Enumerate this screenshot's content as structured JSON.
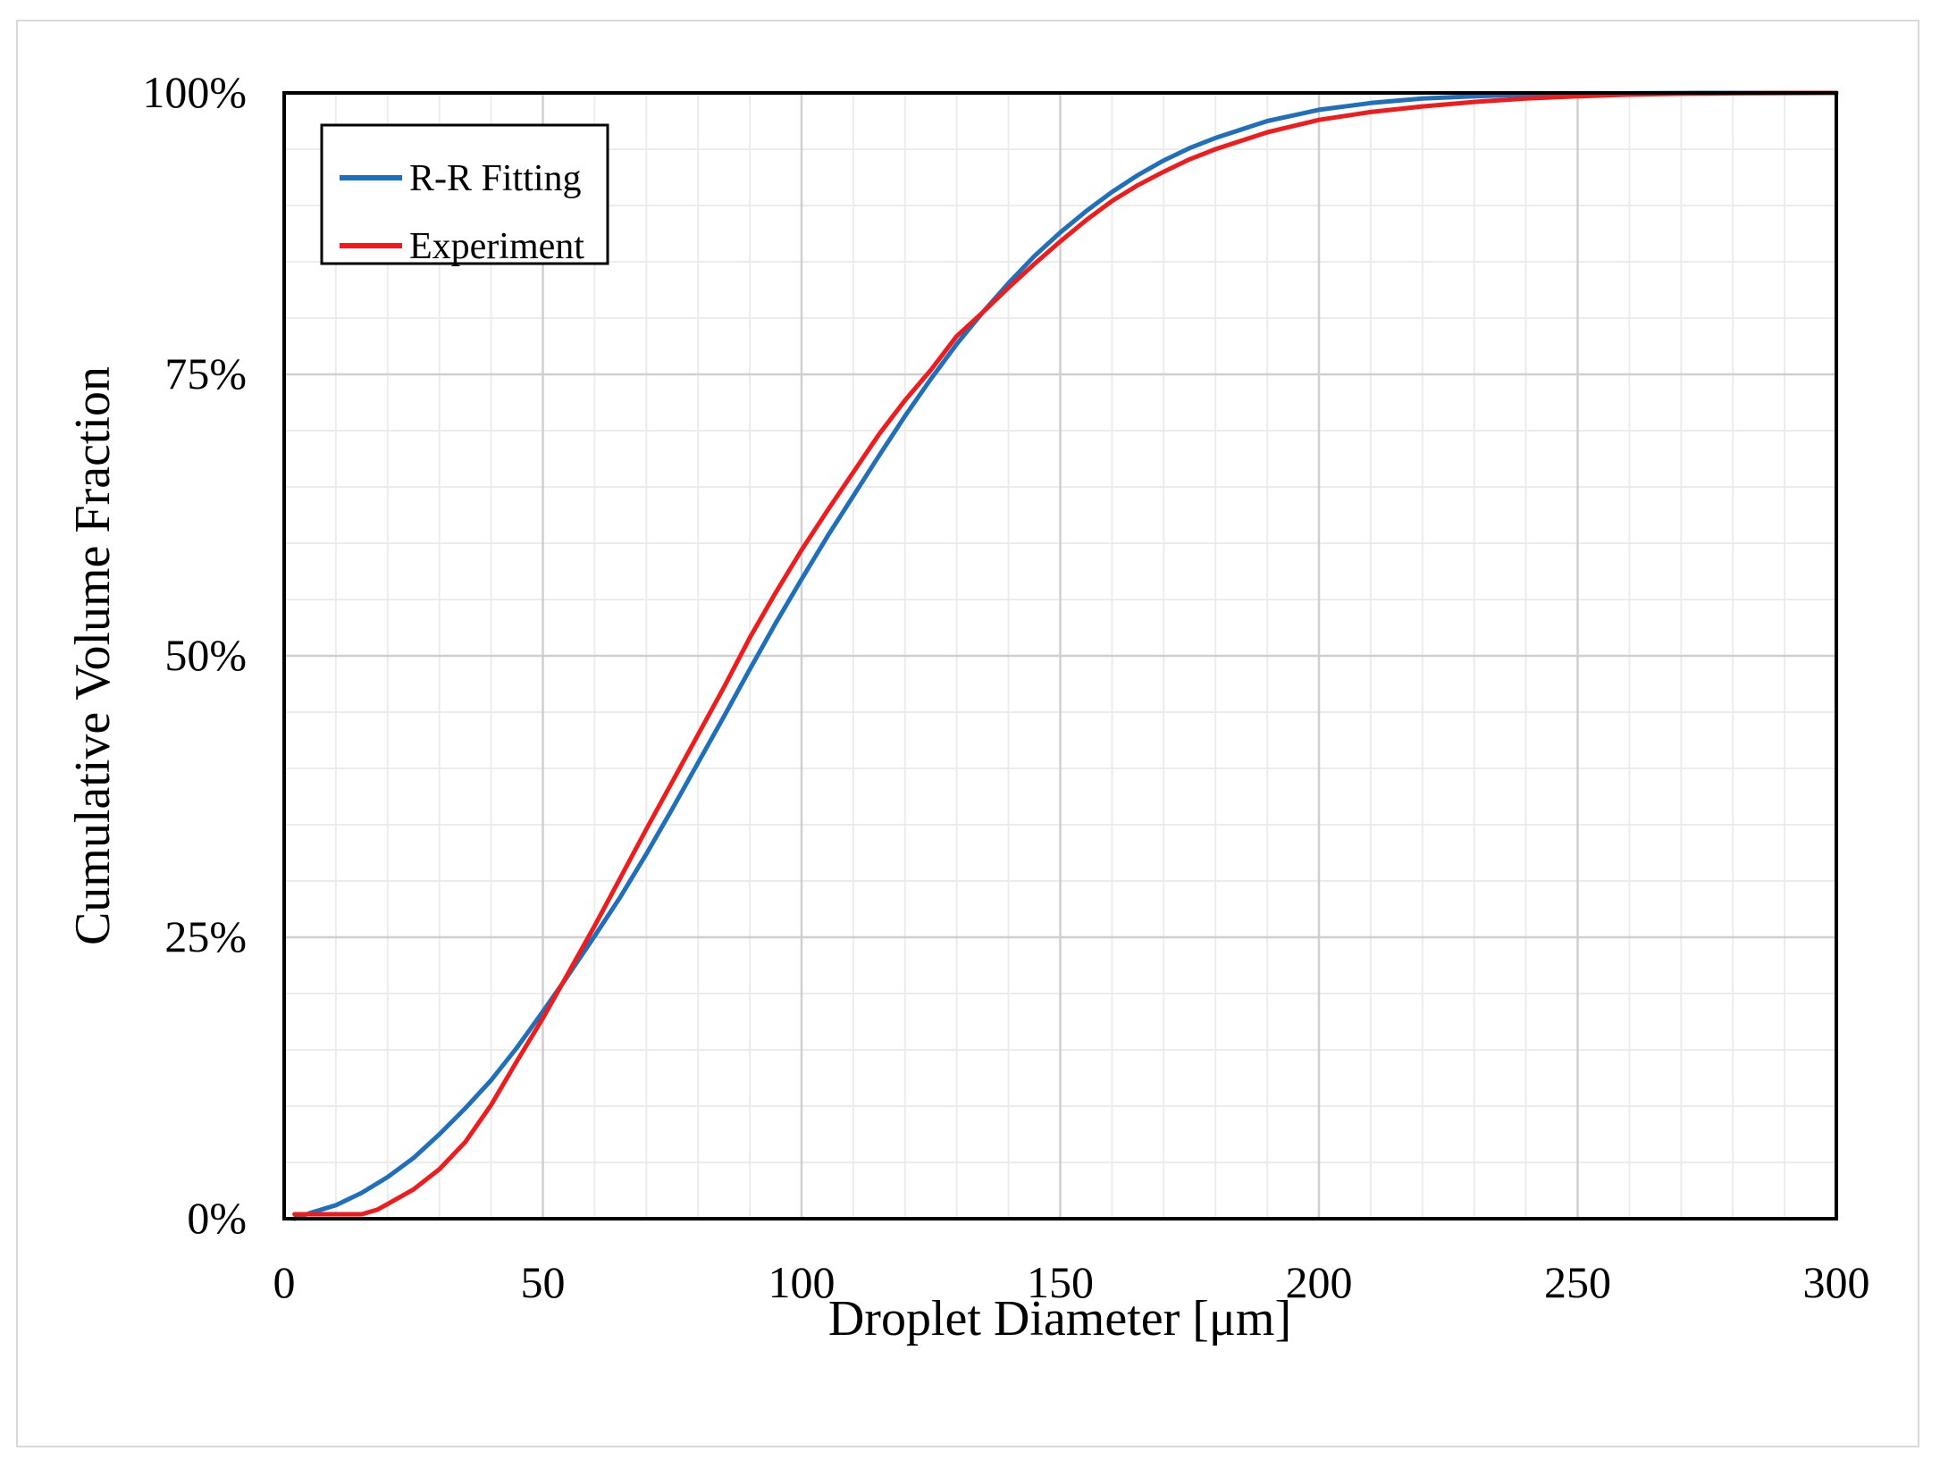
{
  "chart_data": {
    "type": "line",
    "title": "",
    "xlabel": "Droplet Diameter [μm]",
    "ylabel": "Cumulative Volume Fraction",
    "xlim": [
      0,
      300
    ],
    "ylim": [
      0,
      100
    ],
    "x_ticks": [
      0,
      50,
      100,
      150,
      200,
      250,
      300
    ],
    "x_tick_labels": [
      "0",
      "50",
      "100",
      "150",
      "200",
      "250",
      "300"
    ],
    "y_ticks": [
      0,
      25,
      50,
      75,
      100
    ],
    "y_tick_labels": [
      "0%",
      "25%",
      "50%",
      "75%",
      "100%"
    ],
    "grid": {
      "major": true,
      "minor": true,
      "x_minor_step": 10,
      "y_minor_step": 5
    },
    "legend_position": "top-left",
    "series": [
      {
        "name": "R-R Fitting",
        "color": "#1f6fba",
        "x": [
          2,
          5,
          10,
          15,
          20,
          25,
          30,
          35,
          40,
          45,
          50,
          55,
          60,
          65,
          70,
          75,
          80,
          85,
          90,
          95,
          100,
          105,
          110,
          115,
          120,
          125,
          130,
          135,
          140,
          145,
          150,
          155,
          160,
          165,
          170,
          175,
          180,
          190,
          200,
          210,
          220,
          230,
          240,
          250,
          260,
          270,
          280,
          290,
          300
        ],
        "values": [
          0.0,
          0.5,
          1.2,
          2.3,
          3.7,
          5.4,
          7.5,
          9.8,
          12.3,
          15.2,
          18.4,
          21.7,
          25.1,
          28.6,
          32.4,
          36.4,
          40.5,
          44.6,
          48.8,
          52.9,
          56.8,
          60.6,
          64.2,
          67.8,
          71.3,
          74.6,
          77.7,
          80.5,
          83.1,
          85.5,
          87.6,
          89.5,
          91.2,
          92.7,
          94.0,
          95.1,
          96.0,
          97.5,
          98.5,
          99.1,
          99.5,
          99.7,
          99.85,
          99.93,
          99.97,
          99.99,
          100.0,
          100.0,
          100.0
        ]
      },
      {
        "name": "Experiment",
        "color": "#ee1c1c",
        "x": [
          2,
          5,
          10,
          15,
          18,
          20,
          25,
          30,
          35,
          40,
          45,
          50,
          55,
          60,
          65,
          70,
          75,
          80,
          85,
          90,
          95,
          100,
          105,
          110,
          115,
          120,
          125,
          130,
          135,
          140,
          145,
          150,
          155,
          160,
          165,
          170,
          175,
          180,
          190,
          200,
          210,
          220,
          230,
          240,
          250,
          260,
          270,
          280,
          290,
          300
        ],
        "values": [
          0.4,
          0.4,
          0.4,
          0.4,
          0.8,
          1.3,
          2.6,
          4.4,
          6.8,
          10.1,
          14.0,
          17.8,
          21.9,
          26.0,
          30.3,
          34.6,
          38.8,
          43.0,
          47.2,
          51.6,
          55.6,
          59.4,
          62.9,
          66.3,
          69.7,
          72.7,
          75.4,
          78.4,
          80.5,
          82.7,
          84.8,
          86.8,
          88.7,
          90.4,
          91.8,
          93.0,
          94.1,
          95.0,
          96.5,
          97.6,
          98.3,
          98.8,
          99.2,
          99.5,
          99.7,
          99.85,
          99.93,
          99.97,
          99.99,
          100.0
        ]
      }
    ]
  }
}
